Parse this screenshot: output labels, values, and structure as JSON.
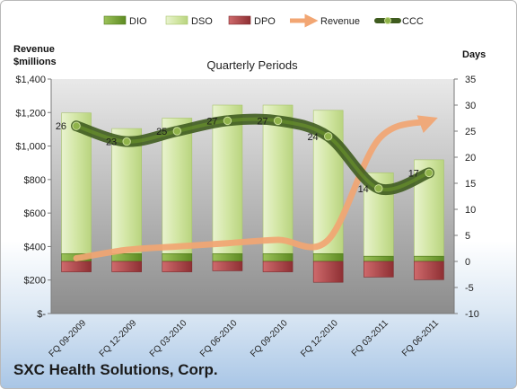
{
  "chart_data": {
    "type": "bar",
    "title": "Quarterly Periods",
    "company": "SXC Health Solutions, Corp.",
    "left_axis_label": [
      "Revenue",
      "$millions"
    ],
    "right_axis_label": "Days",
    "left_ticks": [
      "$1,400",
      "$1,200",
      "$1,000",
      "$800",
      "$600",
      "$400",
      "$200",
      "$-"
    ],
    "right_ticks": [
      "35",
      "30",
      "25",
      "20",
      "15",
      "10",
      "5",
      "0",
      "-5",
      "-10"
    ],
    "left_range": [
      0,
      1400
    ],
    "right_range": [
      -10,
      35
    ],
    "categories": [
      "FQ 09-2009",
      "FQ 12-2009",
      "FQ 03-2010",
      "FQ 06-2010",
      "FQ 09-2010",
      "FQ 12-2010",
      "FQ 03-2011",
      "FQ 06-2011"
    ],
    "legend": [
      "DIO",
      "DSO",
      "DPO",
      "Revenue",
      "CCC"
    ],
    "legend_position": "top",
    "series": [
      {
        "name": "DIO",
        "axis": "days",
        "values": [
          1.5,
          1.5,
          1.5,
          1.5,
          1.5,
          1.5,
          1.0,
          1.0
        ],
        "color": "#6f9a2a"
      },
      {
        "name": "DSO",
        "axis": "days",
        "values": [
          27,
          24,
          26,
          28.5,
          28.5,
          27.5,
          16,
          18.5
        ],
        "color": "#d4e6a9"
      },
      {
        "name": "DPO",
        "axis": "days",
        "values": [
          -2,
          -2,
          -2,
          -1.8,
          -2,
          -4,
          -3,
          -3.5
        ],
        "color": "#b5474a"
      },
      {
        "name": "Revenue",
        "axis": "revenue",
        "values": [
          330,
          380,
          400,
          420,
          440,
          440,
          1040,
          1150
        ],
        "color": "#f2a673"
      },
      {
        "name": "CCC",
        "axis": "days",
        "values": [
          26,
          23,
          25,
          27,
          27,
          24,
          14,
          17
        ],
        "color": "#4f6d2a"
      }
    ],
    "ccc_labels": [
      "26",
      "23",
      "25",
      "27",
      "27",
      "24",
      "14",
      "17"
    ],
    "grid": false
  }
}
